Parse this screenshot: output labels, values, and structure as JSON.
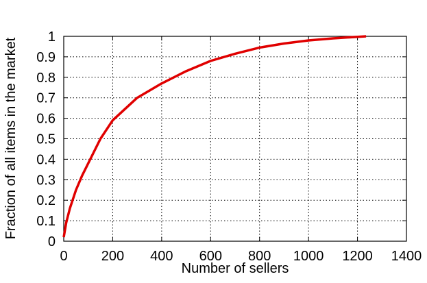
{
  "chart_data": {
    "type": "line",
    "x_label": "Number of sellers",
    "y_label": "Fraction of all items in the market",
    "x": [
      0,
      10,
      25,
      50,
      75,
      100,
      150,
      200,
      300,
      400,
      500,
      600,
      700,
      800,
      900,
      1000,
      1100,
      1235
    ],
    "values": [
      0.02,
      0.09,
      0.16,
      0.25,
      0.32,
      0.38,
      0.5,
      0.59,
      0.7,
      0.77,
      0.83,
      0.88,
      0.915,
      0.945,
      0.965,
      0.98,
      0.99,
      1.0
    ],
    "color": "#e00000",
    "xlim": [
      0,
      1400
    ],
    "xticks": [
      0,
      200,
      400,
      600,
      800,
      1000,
      1200,
      1400
    ],
    "ylim": [
      0,
      1
    ],
    "yticks": [
      0,
      0.1,
      0.2,
      0.3,
      0.4,
      0.5,
      0.6,
      0.7,
      0.8,
      0.9,
      1
    ],
    "grid": true
  }
}
